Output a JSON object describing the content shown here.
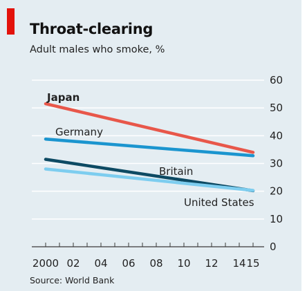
{
  "header": {
    "title": "Throat-clearing",
    "subtitle": "Adult males who smoke, %"
  },
  "footer": {
    "source": "Source: World Bank"
  },
  "colors": {
    "background": "#e4edf2",
    "accent": "#e3120b",
    "grid": "#ffffff",
    "axis": "#3a3a3a"
  },
  "chart_data": {
    "type": "line",
    "title": "Throat-clearing",
    "subtitle": "Adult males who smoke, %",
    "x": [
      2000,
      2015
    ],
    "x_tick_values": [
      2000,
      2002,
      2004,
      2006,
      2008,
      2010,
      2012,
      2014,
      2015
    ],
    "x_tick_labels": [
      "2000",
      "02",
      "04",
      "06",
      "08",
      "10",
      "12",
      "14",
      "15"
    ],
    "ylim": [
      0,
      60
    ],
    "y_ticks": [
      0,
      10,
      20,
      30,
      40,
      50,
      60
    ],
    "y_axis_side": "right",
    "grid": true,
    "series": [
      {
        "name": "Japan",
        "color": "#e8574a",
        "bold": true,
        "x": [
          2000,
          2015
        ],
        "values": [
          51.5,
          34
        ]
      },
      {
        "name": "Germany",
        "color": "#1b95cf",
        "bold": false,
        "x": [
          2000,
          2015
        ],
        "values": [
          38.8,
          32.8
        ]
      },
      {
        "name": "Britain",
        "color": "#0d4a63",
        "bold": false,
        "x": [
          2000,
          2015
        ],
        "values": [
          31.5,
          20.2
        ]
      },
      {
        "name": "United States",
        "color": "#7dcdef",
        "bold": false,
        "x": [
          2000,
          2015
        ],
        "values": [
          28,
          20.3
        ]
      }
    ]
  }
}
